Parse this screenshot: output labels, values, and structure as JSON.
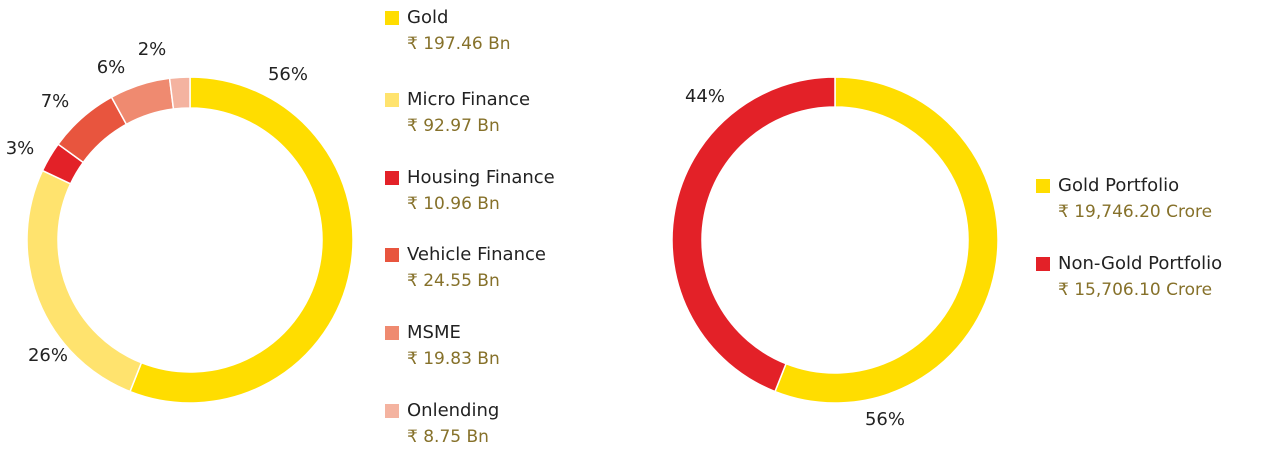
{
  "chart_data": [
    {
      "type": "pie",
      "categories": [
        "Gold",
        "Micro Finance",
        "Housing Finance",
        "Vehicle Finance",
        "MSME",
        "Onlending"
      ],
      "values": [
        56,
        26,
        3,
        7,
        6,
        2
      ],
      "value_labels": [
        "56%",
        "26%",
        "3%",
        "7%",
        "6%",
        "2%"
      ],
      "legend_values": [
        "₹ 197.46 Bn",
        "₹ 92.97 Bn",
        "₹ 10.96 Bn",
        "₹ 24.55 Bn",
        "₹ 19.83 Bn",
        "₹ 8.75 Bn"
      ],
      "colors": [
        "#ffdd00",
        "#ffe36e",
        "#e32128",
        "#e8553e",
        "#ef8a70",
        "#f4b3a0"
      ]
    },
    {
      "type": "pie",
      "categories": [
        "Gold Portfolio",
        "Non-Gold Portfolio"
      ],
      "values": [
        56,
        44
      ],
      "value_labels": [
        "56%",
        "44%"
      ],
      "legend_values": [
        "₹ 19,746.20 Crore",
        "₹ 15,706.10 Crore"
      ],
      "colors": [
        "#ffdd00",
        "#e32128"
      ]
    }
  ]
}
